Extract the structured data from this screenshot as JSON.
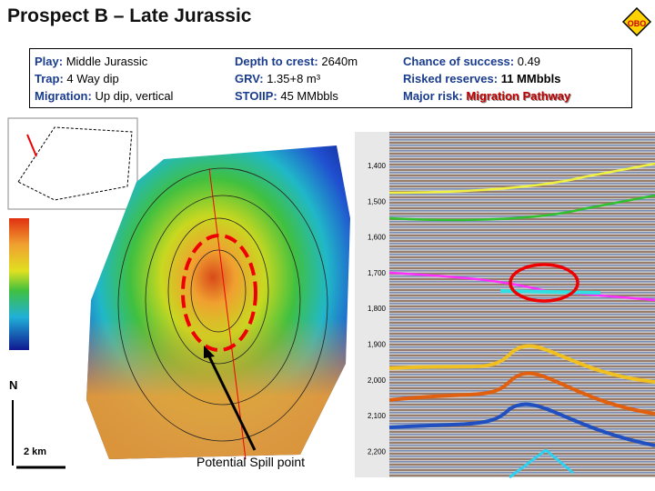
{
  "header": {
    "title": "Prospect B – Late Jurassic",
    "logo": "OBO"
  },
  "info": {
    "rows": [
      [
        {
          "label": "Play:",
          "value": "Middle Jurassic"
        },
        {
          "label": "Depth to crest:",
          "value": "2640m"
        },
        {
          "label": "Chance of success:",
          "value": "0.49"
        }
      ],
      [
        {
          "label": "Trap:",
          "value": "4 Way dip"
        },
        {
          "label": "GRV:",
          "value": "1.35+8 m³"
        },
        {
          "label": "Risked reserves:",
          "value": "11 MMbbls"
        }
      ],
      [
        {
          "label": "Migration:",
          "value": "Up dip, vertical"
        },
        {
          "label": "STOIIP:",
          "value": "45 MMbbls"
        },
        {
          "label": "Major risk:",
          "value": "Migration Pathway"
        }
      ]
    ]
  },
  "map": {
    "north": "N",
    "scale": "2 km",
    "annotation": "Potential Spill point"
  },
  "seismic": {
    "time_labels": [
      "1,400",
      "1,500",
      "1,600",
      "1,700",
      "1,800",
      "1,900",
      "2,000",
      "2,100",
      "2,200"
    ]
  }
}
